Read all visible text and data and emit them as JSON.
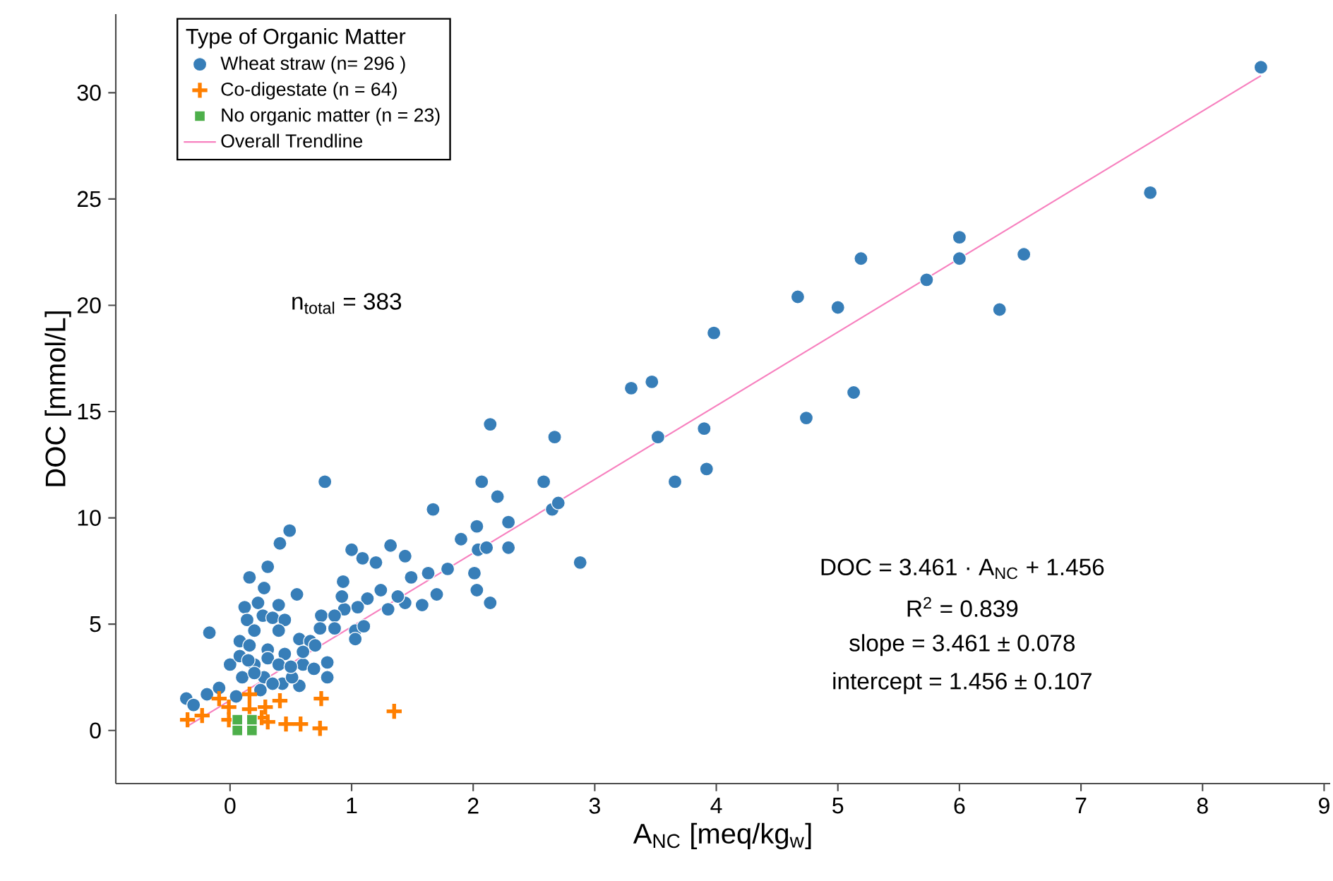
{
  "chart_data": {
    "type": "scatter",
    "xlabel": "A$_{NC}$ [meq/kg$_{w}$]",
    "ylabel": "DOC [mmol/L]",
    "legend_title": "Type of Organic Matter",
    "legend": "top left",
    "grid": false,
    "xlim": [
      -0.94,
      9.05
    ],
    "ylim": [
      -2.5,
      33.7
    ],
    "xticks": [
      0,
      1,
      2,
      3,
      4,
      5,
      6,
      7,
      8,
      9
    ],
    "yticks": [
      0,
      5,
      10,
      15,
      20,
      25,
      30
    ],
    "annotations": [
      "n$_{total}$ = 383",
      "DOC = 3.461 · A$_{NC}$ + 1.456",
      "R$^{2}$ = 0.839",
      "slope = 3.461 ± 0.078",
      "intercept = 1.456 ± 0.107"
    ],
    "series": [
      {
        "name": "Wheat straw (n= 296 )",
        "color": "#377eb8",
        "marker": "circle",
        "x": [
          8.48,
          7.57,
          6.53,
          6.0,
          6.0,
          6.33,
          5.73,
          5.19,
          5.0,
          4.67,
          5.13,
          4.74,
          3.98,
          3.9,
          3.92,
          3.66,
          3.52,
          3.47,
          3.3,
          2.88,
          2.67,
          2.58,
          2.65,
          2.7,
          2.14,
          2.07,
          2.2,
          1.67,
          2.03,
          1.9,
          2.29,
          2.29,
          2.04,
          2.11,
          2.01,
          1.79,
          1.63,
          1.49,
          1.44,
          2.14,
          2.03,
          0.78,
          0.49,
          0.41,
          1.0,
          1.32,
          1.09,
          1.2,
          0.31,
          0.16,
          1.7,
          1.58,
          1.44,
          1.3,
          1.38,
          1.24,
          1.13,
          1.05,
          0.94,
          0.93,
          0.92,
          0.55,
          0.28,
          0.23,
          0.4,
          0.12,
          0.27,
          0.14,
          0.35,
          0.45,
          0.75,
          0.86,
          -0.17,
          0.2,
          0.4,
          0.74,
          1.03,
          1.1,
          0.86,
          0.57,
          0.66,
          1.03,
          0.08,
          0.16,
          0.31,
          0.45,
          0.0,
          0.08,
          0.2,
          0.31,
          0.4,
          0.6,
          0.8,
          0.69,
          0.8,
          0.57,
          0.43,
          0.28,
          0.1,
          0.2,
          -0.09,
          -0.19,
          -0.36,
          -0.3,
          0.35,
          0.51,
          0.05,
          0.25,
          0.6,
          0.7,
          0.5,
          0.15
        ],
        "values": [
          31.2,
          25.3,
          22.4,
          23.2,
          22.2,
          19.8,
          21.2,
          22.2,
          19.9,
          20.4,
          15.9,
          14.7,
          18.7,
          14.2,
          12.3,
          11.7,
          13.8,
          16.4,
          16.1,
          7.9,
          13.8,
          11.7,
          10.4,
          10.7,
          14.4,
          11.7,
          11.0,
          10.4,
          9.6,
          9.0,
          9.8,
          8.6,
          8.5,
          8.6,
          7.4,
          7.6,
          7.4,
          7.2,
          8.2,
          6.0,
          6.6,
          11.7,
          9.4,
          8.8,
          8.5,
          8.7,
          8.1,
          7.9,
          7.7,
          7.2,
          6.4,
          5.9,
          6.0,
          5.7,
          6.3,
          6.6,
          6.2,
          5.8,
          5.7,
          7.0,
          6.3,
          6.4,
          6.7,
          6.0,
          5.9,
          5.8,
          5.4,
          5.2,
          5.3,
          5.2,
          5.4,
          5.4,
          4.6,
          4.7,
          4.7,
          4.8,
          4.7,
          4.9,
          4.8,
          4.3,
          4.2,
          4.3,
          4.2,
          4.0,
          3.8,
          3.6,
          3.1,
          3.5,
          3.1,
          3.4,
          3.1,
          3.1,
          3.2,
          2.9,
          2.5,
          2.1,
          2.2,
          2.5,
          2.5,
          2.7,
          2.0,
          1.7,
          1.5,
          1.2,
          2.2,
          2.5,
          1.6,
          1.9,
          3.7,
          4.0,
          3.0,
          3.3
        ]
      },
      {
        "name": "Co-digestate (n = 64)",
        "color": "#ff7f00",
        "marker": "cross",
        "x": [
          -0.35,
          -0.23,
          -0.09,
          -0.01,
          0.16,
          0.16,
          0.29,
          0.41,
          -0.01,
          0.31,
          0.46,
          0.58,
          0.74,
          0.75,
          1.35,
          0.26
        ],
        "values": [
          0.5,
          0.7,
          1.5,
          1.1,
          1.7,
          1.0,
          1.1,
          1.4,
          0.5,
          0.4,
          0.3,
          0.3,
          0.1,
          1.5,
          0.9,
          0.6
        ]
      },
      {
        "name": "No organic matter (n = 23)",
        "color": "#4daf4a",
        "marker": "square",
        "x": [
          0.06,
          0.18,
          0.06,
          0.18
        ],
        "values": [
          0.5,
          0.5,
          0.0,
          0.0
        ]
      },
      {
        "name": "Overall Trendline",
        "type": "line",
        "color": "#f781bf",
        "line_style": "solid",
        "marker": "none",
        "x": [
          -0.35,
          8.48
        ],
        "values": [
          0.2,
          30.8
        ]
      }
    ]
  }
}
